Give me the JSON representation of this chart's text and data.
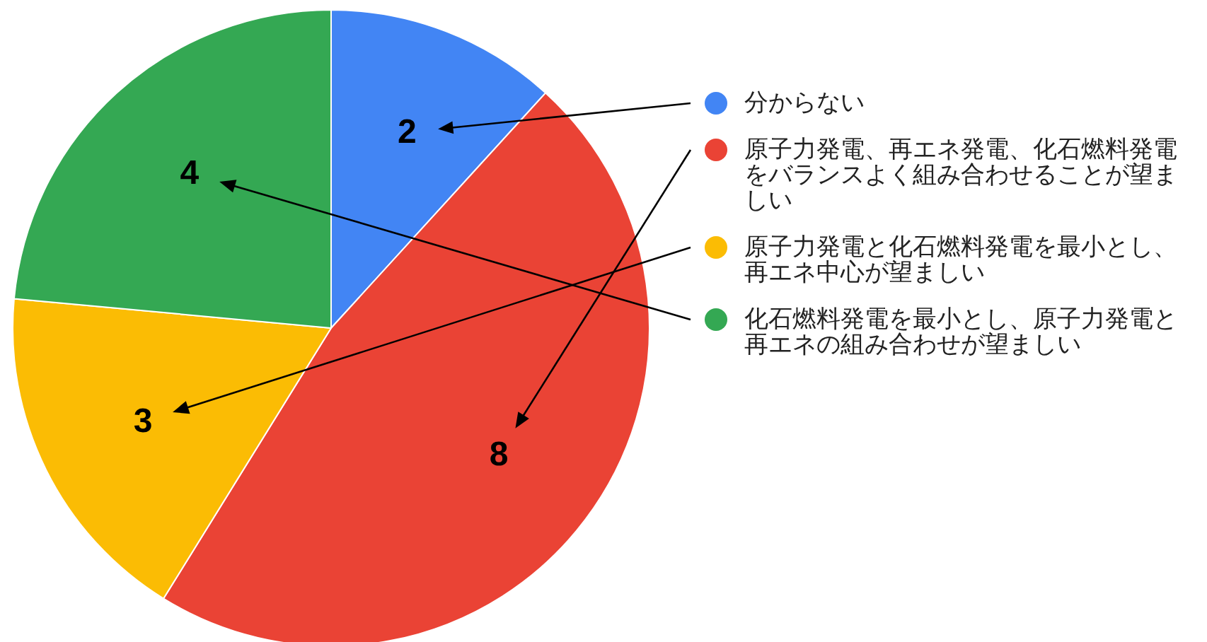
{
  "chart_data": {
    "type": "pie",
    "categories": [
      "分からない",
      "原子力発電、再エネ発電、化石燃料発電をバランスよく組み合わせることが望ましい",
      "原子力発電と化石燃料発電を最小とし、再エネ中心が望ましい",
      "化石燃料発電を最小とし、原子力発電と再エネの組み合わせが望ましい"
    ],
    "values": [
      2,
      8,
      3,
      4
    ],
    "colors": [
      "#4285f4",
      "#ea4335",
      "#fbbc04",
      "#34a853"
    ],
    "data_labels": true,
    "legend": "right"
  }
}
